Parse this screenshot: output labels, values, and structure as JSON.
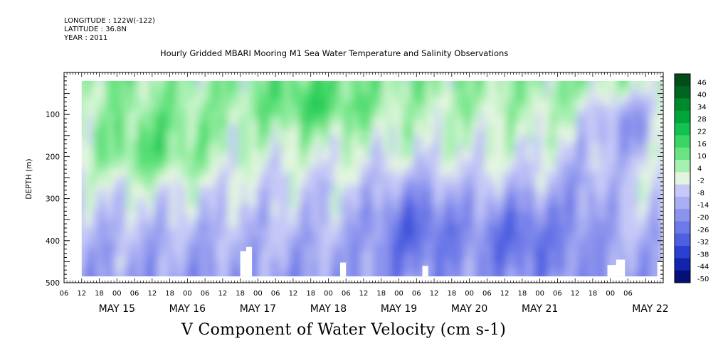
{
  "header": {
    "longitude": "LONGITUDE : 122W(-122)",
    "latitude": "LATITUDE : 36.8N",
    "year": "YEAR : 2011"
  },
  "chart_data": {
    "type": "heatmap",
    "title": "Hourly Gridded MBARI Mooring M1 Sea Water Temperature and Salinity Observations",
    "xlabel": "V Component of Water Velocity (cm s-1)",
    "ylabel": "DEPTH (m)",
    "y_ticks": [
      100,
      200,
      300,
      400,
      500
    ],
    "ylim": [
      500,
      0
    ],
    "y_reversed": true,
    "data_depth_range": [
      20,
      485
    ],
    "hour_tick_labels": [
      "06",
      "12",
      "18",
      "00",
      "06",
      "12",
      "18",
      "00",
      "06",
      "12",
      "18",
      "00",
      "06",
      "12",
      "18",
      "00",
      "06",
      "12",
      "18",
      "00",
      "06",
      "12",
      "18",
      "00",
      "06",
      "12",
      "18",
      "00",
      "06",
      "12",
      "18",
      "00",
      "06"
    ],
    "date_labels": [
      "MAY 15",
      "MAY 16",
      "MAY 17",
      "MAY 18",
      "MAY 19",
      "MAY 20",
      "MAY 21",
      "MAY 22"
    ],
    "x_range_hours": [
      0,
      204
    ],
    "data_start_hour": 6,
    "colorbar_levels": [
      46,
      40,
      34,
      28,
      22,
      16,
      10,
      4,
      -2,
      -8,
      -14,
      -20,
      -26,
      -32,
      -38,
      -44,
      -50
    ],
    "colorbar_colors": [
      "#004d1a",
      "#00661f",
      "#008a2e",
      "#00a63a",
      "#11c24f",
      "#3ad663",
      "#6ae482",
      "#a6f0b0",
      "#e3f5e0",
      "#c6c9f7",
      "#a9aef2",
      "#8b93ed",
      "#6d79e8",
      "#4e5fe0",
      "#2b3fd1",
      "#1224ab",
      "#040f78"
    ],
    "description_regions": [
      {
        "hours": [
          6,
          54
        ],
        "depth": [
          20,
          230
        ],
        "sign": "positive"
      },
      {
        "hours": [
          60,
          102
        ],
        "depth": [
          20,
          200
        ],
        "sign": "positive"
      },
      {
        "hours": [
          102,
          132
        ],
        "depth": [
          230,
          485
        ],
        "sign": "negative"
      },
      {
        "hours": [
          138,
          168
        ],
        "depth": [
          250,
          485
        ],
        "sign": "negative"
      },
      {
        "hours": [
          162,
          202
        ],
        "depth": [
          20,
          180
        ],
        "sign": "negative"
      }
    ]
  }
}
